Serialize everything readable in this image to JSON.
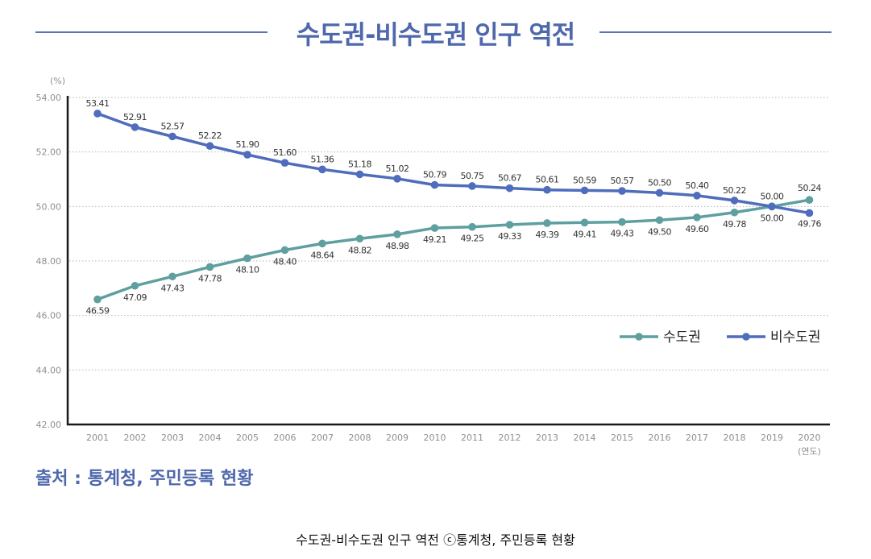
{
  "title": "수도권-비수도권 인구 역전",
  "source_text": "출처 : 통계청, 주민등록 현황",
  "caption": "수도권-비수도권 인구 역전 ⓒ통계청, 주민등록 현황",
  "colors": {
    "title": "#4f68ac",
    "capital": "#5e9fa0",
    "non_capital": "#4f6cbd",
    "grid": "#b5b5b5",
    "axis": "#1a1a1a"
  },
  "chart_data": {
    "type": "line",
    "title": "수도권-비수도권 인구 역전",
    "ylabel": "(%)",
    "xlabel": "(연도)",
    "ylim": [
      42,
      54
    ],
    "yticks": [
      "42.00",
      "44.00",
      "46.00",
      "48.00",
      "50.00",
      "52.00",
      "54.00"
    ],
    "x": [
      "2001",
      "2002",
      "2003",
      "2004",
      "2005",
      "2006",
      "2007",
      "2008",
      "2009",
      "2010",
      "2011",
      "2012",
      "2013",
      "2014",
      "2015",
      "2016",
      "2017",
      "2018",
      "2019",
      "2020"
    ],
    "grid": true,
    "legend_position": "right",
    "series": [
      {
        "name": "수도권",
        "values": [
          46.59,
          47.09,
          47.43,
          47.78,
          48.1,
          48.4,
          48.64,
          48.82,
          48.98,
          49.21,
          49.25,
          49.33,
          49.39,
          49.41,
          49.43,
          49.5,
          49.6,
          49.78,
          50.0,
          50.24
        ],
        "labels": [
          "46.59",
          "47.09",
          "47.43",
          "47.78",
          "48.10",
          "48.40",
          "48.64",
          "48.82",
          "48.98",
          "49.21",
          "49.25",
          "49.33",
          "49.39",
          "49.41",
          "49.43",
          "49.50",
          "49.60",
          "49.78",
          "50.00",
          "50.24"
        ]
      },
      {
        "name": "비수도권",
        "values": [
          53.41,
          52.91,
          52.57,
          52.22,
          51.9,
          51.6,
          51.36,
          51.18,
          51.02,
          50.79,
          50.75,
          50.67,
          50.61,
          50.59,
          50.57,
          50.5,
          50.4,
          50.22,
          50.0,
          49.76
        ],
        "labels": [
          "53.41",
          "52.91",
          "52.57",
          "52.22",
          "51.90",
          "51.60",
          "51.36",
          "51.18",
          "51.02",
          "50.79",
          "50.75",
          "50.67",
          "50.61",
          "50.59",
          "50.57",
          "50.50",
          "50.40",
          "50.22",
          "50.00",
          "49.76"
        ]
      }
    ]
  }
}
